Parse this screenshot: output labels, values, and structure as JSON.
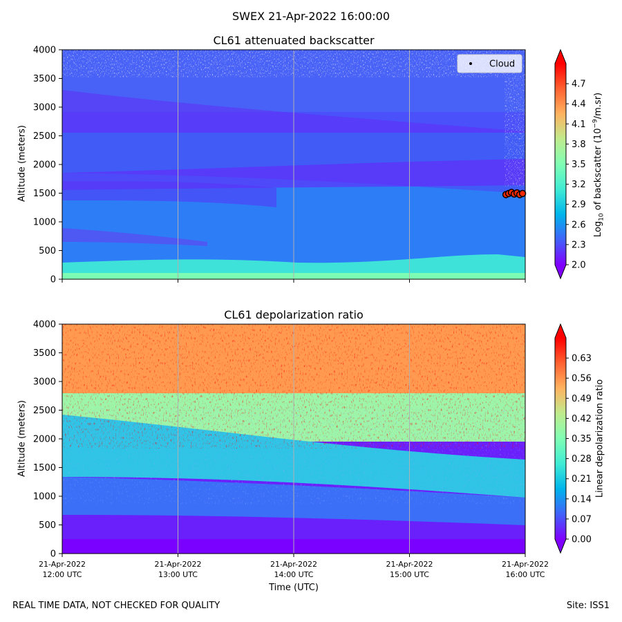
{
  "suptitle": "SWEX 21-Apr-2022 16:00:00",
  "footer_left": "REAL TIME DATA, NOT CHECKED FOR QUALITY",
  "footer_right": "Site: ISS1",
  "colors": {
    "rainbow": [
      "#8000ff",
      "#4062fa",
      "#00b5eb",
      "#40ecd4",
      "#80ffb4",
      "#c0eb8d",
      "#ffb360",
      "#ff6130",
      "#ff0000"
    ],
    "cloud_marker": "#000000",
    "grid": "#b0b0b0"
  },
  "chart_data": [
    {
      "type": "heatmap",
      "title": "CL61 attenuated backscatter",
      "ylabel": "Altitude (meters)",
      "xlabel": "",
      "xlim": [
        "21-Apr-2022 12:00 UTC",
        "21-Apr-2022 16:00 UTC"
      ],
      "ylim": [
        0,
        4000
      ],
      "y_ticks": [
        0,
        500,
        1000,
        1500,
        2000,
        2500,
        3000,
        3500,
        4000
      ],
      "grid": "vertical",
      "colorbar": {
        "label_prefix": "Log",
        "label_sub": "10",
        "label_mid": " of backscatter (10",
        "label_sup": "−9",
        "label_suffix": "/m.sr)",
        "range": [
          2.0,
          5.0
        ],
        "extend": "both",
        "ticks": [
          "2.0",
          "2.3",
          "2.6",
          "2.9",
          "3.2",
          "3.5",
          "3.8",
          "4.1",
          "4.4",
          "4.7"
        ]
      },
      "legend": {
        "entries": [
          "Cloud"
        ],
        "placement": "top-right"
      },
      "cloud_detections": {
        "time_range_utc": [
          "15:50",
          "16:00"
        ],
        "altitude_m": 1500
      }
    },
    {
      "type": "heatmap",
      "title": "CL61 depolarization ratio",
      "ylabel": "Altitude (meters)",
      "xlabel": "Time (UTC)",
      "xlim": [
        "21-Apr-2022 12:00 UTC",
        "21-Apr-2022 16:00 UTC"
      ],
      "ylim": [
        0,
        4000
      ],
      "y_ticks": [
        0,
        500,
        1000,
        1500,
        2000,
        2500,
        3000,
        3500,
        4000
      ],
      "x_ticks": [
        {
          "date": "21-Apr-2022",
          "time": "12:00 UTC"
        },
        {
          "date": "21-Apr-2022",
          "time": "13:00 UTC"
        },
        {
          "date": "21-Apr-2022",
          "time": "14:00 UTC"
        },
        {
          "date": "21-Apr-2022",
          "time": "15:00 UTC"
        },
        {
          "date": "21-Apr-2022",
          "time": "16:00 UTC"
        }
      ],
      "grid": "vertical",
      "colorbar": {
        "label": "Linear depolarization ratio",
        "range": [
          0.0,
          0.7
        ],
        "extend": "both",
        "ticks": [
          "0.00",
          "0.07",
          "0.14",
          "0.21",
          "0.28",
          "0.35",
          "0.42",
          "0.49",
          "0.56",
          "0.63"
        ]
      }
    }
  ]
}
